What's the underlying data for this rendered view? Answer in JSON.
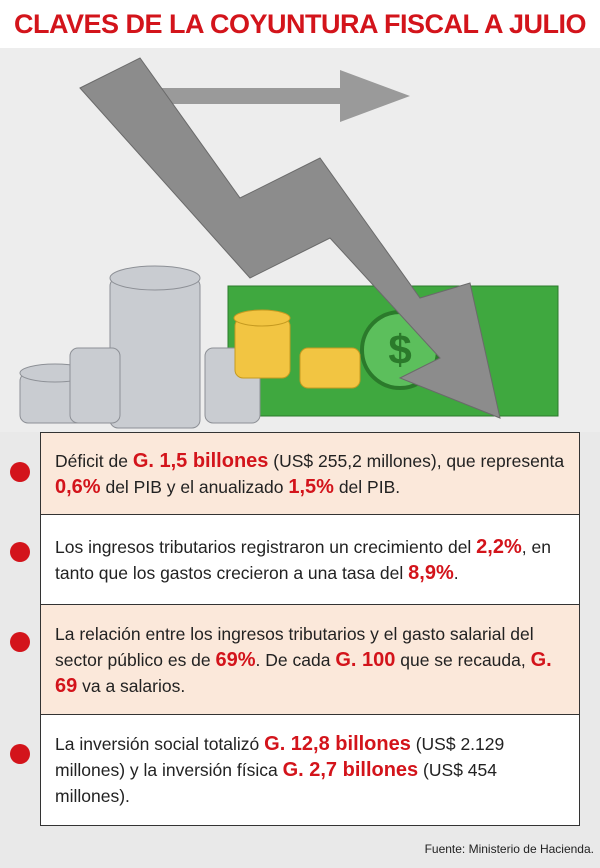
{
  "title": "CLAVES DE LA COYUNTURA FISCAL A JULIO",
  "items": [
    {
      "parts": [
        "Déficit de ",
        "G. 1,5 billones",
        " (US$ 255,2 millones),  que representa ",
        "0,6%",
        " del PIB y el anualizado ",
        "1,5%",
        " del PIB."
      ]
    },
    {
      "parts": [
        "Los ingresos tributarios registraron un crecimiento del ",
        "2,2%",
        ", en tanto que los gastos crecieron a una tasa del ",
        "8,9%",
        "."
      ]
    },
    {
      "parts": [
        "La relación entre los ingresos tributarios y el gasto salarial del sector público es de ",
        "69%",
        ". De cada ",
        "G. 100",
        " que se recauda, ",
        "G. 69",
        " va a salarios."
      ]
    },
    {
      "parts": [
        "La inversión social totalizó ",
        "G. 12,8 billones",
        " (US$ 2.129 millones) y la inversión física ",
        "G. 2,7 billones",
        " (US$ 454 millones)."
      ]
    }
  ],
  "source": "Fuente: Ministerio de Hacienda."
}
